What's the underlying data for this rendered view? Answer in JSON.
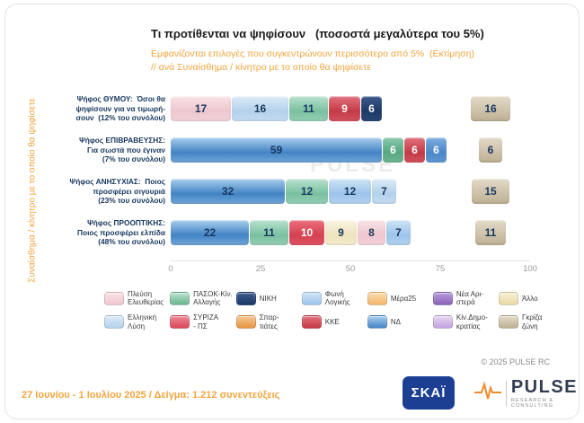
{
  "title": "Τι προτίθενται να ψηφίσουν   (ποσοστά μεγαλύτερα του 5%)",
  "subtitle_line1": "Εμφανίζονται επιλογές που συγκεντρώνουν περισσότερο από 5%  (Εκτίμηση)",
  "subtitle_line2": "// ανά Συναίσθημα / κίνητρο με το οποίο θα ψηφίσετε",
  "y_axis_label": "Συναίσθημα / κίνητρο με το οποίο θα ψηφίσετε",
  "watermark": "PULSE",
  "copyright": "© 2025 PULSE RC",
  "footer": "27 Ιουνίου - 1 Ιουλίου 2025  /  Δείγμα:  1.212 συνεντεύξεις",
  "logos": {
    "skai": "ΣΚΑΪ",
    "pulse": "PULSE",
    "pulse_sub": "RESEARCH & CONSULTING"
  },
  "accent_orange": "#f2a43e",
  "chart_data": {
    "type": "bar",
    "orientation": "horizontal",
    "stacked": true,
    "title": "Τι προτίθενται να ψηφίσουν (ποσοστά μεγαλύτερα του 5%)",
    "xlabel": "",
    "ylabel": "Συναίσθημα / κίνητρο με το οποίο θα ψηφίσετε",
    "xlim": [
      0,
      100
    ],
    "x_ticks": [
      0,
      25,
      50,
      75,
      100
    ],
    "grid": false,
    "legend_position": "bottom",
    "grey_zone_colors": {
      "c1": "#e3dac8",
      "c2": "#bdb093"
    },
    "rows": [
      {
        "label": "Ψήφος ΘΥΜΟΥ:  Όσοι θα\nψηφίσουν για να τιμωρή-\nσουν  (12% του συνόλου)",
        "segments": [
          {
            "party": "Πλεύση Ελευθερίας",
            "value": 17,
            "c1": "#f9e3e7",
            "c2": "#eec6ce",
            "tc": "#17375e"
          },
          {
            "party": "Ελληνική Λύση",
            "value": 16,
            "c1": "#ddebf7",
            "c2": "#b3d1ec",
            "tc": "#17375e"
          },
          {
            "party": "ΠΑΣΟΚ-Κίν. Αλλαγής",
            "value": 11,
            "c1": "#b9e2cf",
            "c2": "#79c0a0",
            "tc": "#17375e"
          },
          {
            "party": "ΚΚΕ",
            "value": 9,
            "c1": "#e2737e",
            "c2": "#c43a46",
            "tc": "#ffffff"
          },
          {
            "party": "ΝΙΚΗ",
            "value": 6,
            "c1": "#3c5c8e",
            "c2": "#1d3a66",
            "tc": "#ffffff"
          }
        ],
        "grey_zone": 16
      },
      {
        "label": "Ψήφος ΕΠΙΒΡΑΒΕΥΣΗΣ:\nΓια σωστά που έγιναν\n(7% του συνόλου)",
        "segments": [
          {
            "party": "ΝΔ",
            "value": 59,
            "c1": "#aacfee",
            "c2": "#4384c4",
            "tc": "#17375e"
          },
          {
            "party": "ΠΑΣΟΚ-Κίν. Αλλαγής",
            "value": 6,
            "c1": "#8cc9ab",
            "c2": "#56a781",
            "tc": "#ffffff"
          },
          {
            "party": "ΚΚΕ",
            "value": 6,
            "c1": "#e2737e",
            "c2": "#c43a46",
            "tc": "#ffffff"
          },
          {
            "party": "Φωνή Λογικής",
            "value": 6,
            "c1": "#7fb0e0",
            "c2": "#4a86c8",
            "tc": "#ffffff"
          }
        ],
        "grey_zone": 6
      },
      {
        "label": "Ψήφος ΑΝΗΣΥΧΙΑΣ:  Ποιος\nπροσφέρει σιγουριά\n(23% του συνόλου)",
        "segments": [
          {
            "party": "ΝΔ",
            "value": 32,
            "c1": "#aacfee",
            "c2": "#4384c4",
            "tc": "#17375e"
          },
          {
            "party": "ΠΑΣΟΚ-Κίν. Αλλαγής",
            "value": 12,
            "c1": "#b9e2cf",
            "c2": "#79c0a0",
            "tc": "#17375e"
          },
          {
            "party": "Φωνή Λογικής",
            "value": 12,
            "c1": "#cfe4f7",
            "c2": "#9cc4ea",
            "tc": "#17375e"
          },
          {
            "party": "Ελληνική Λύση",
            "value": 7,
            "c1": "#ddebf7",
            "c2": "#b3d1ec",
            "tc": "#17375e"
          }
        ],
        "grey_zone": 15
      },
      {
        "label": "Ψήφος ΠΡΟΟΠΤΙΚΗΣ:\nΠοιος προσφέρει ελπίδα\n(48% του συνόλου)",
        "segments": [
          {
            "party": "ΝΔ",
            "value": 22,
            "c1": "#aacfee",
            "c2": "#4384c4",
            "tc": "#17375e"
          },
          {
            "party": "ΠΑΣΟΚ-Κίν. Αλλαγής",
            "value": 11,
            "c1": "#b9e2cf",
            "c2": "#79c0a0",
            "tc": "#17375e"
          },
          {
            "party": "ΣΥΡΙΖΑ - ΠΣ",
            "value": 10,
            "c1": "#ec6f7e",
            "c2": "#d5404f",
            "tc": "#ffffff"
          },
          {
            "party": "Άλλο",
            "value": 9,
            "c1": "#faf5e3",
            "c2": "#eee3bd",
            "tc": "#17375e"
          },
          {
            "party": "Πλεύση Ελευθερίας",
            "value": 8,
            "c1": "#f9e3e7",
            "c2": "#eec6ce",
            "tc": "#17375e"
          },
          {
            "party": "Φωνή Λογικής",
            "value": 7,
            "c1": "#cfe4f7",
            "c2": "#9cc4ea",
            "tc": "#17375e"
          }
        ],
        "grey_zone": 11
      }
    ],
    "legend": [
      {
        "label": "Πλεύση\nΕλευθερίας",
        "c1": "#f9e3e7",
        "c2": "#eec6ce"
      },
      {
        "label": "ΠΑΣΟΚ-Κίν.\nΑλλαγής",
        "c1": "#b9e2cf",
        "c2": "#6ab68f"
      },
      {
        "label": "ΝΙΚΗ",
        "c1": "#3c5c8e",
        "c2": "#1d3a66"
      },
      {
        "label": "Φωνή\nΛογικής",
        "c1": "#cfe4f7",
        "c2": "#9cc4ea"
      },
      {
        "label": "Μέρα25",
        "c1": "#fbddb0",
        "c2": "#f3b56a"
      },
      {
        "label": "Νέα Αρι-\nστερά",
        "c1": "#b79ddc",
        "c2": "#8a63b8"
      },
      {
        "label": "Άλλο",
        "c1": "#f8f0d5",
        "c2": "#e9d9a5"
      },
      {
        "label": "Ελληνική\nΛύση",
        "c1": "#ddebf7",
        "c2": "#b3d1ec"
      },
      {
        "label": "ΣΥΡΙΖΑ\n- ΠΣ",
        "c1": "#ee8896",
        "c2": "#d9485c"
      },
      {
        "label": "Σπαρ-\nτιάτες",
        "c1": "#f6c693",
        "c2": "#e6953f"
      },
      {
        "label": "ΚΚΕ",
        "c1": "#e2737e",
        "c2": "#c43a46"
      },
      {
        "label": "ΝΔ",
        "c1": "#aacfee",
        "c2": "#4384c4"
      },
      {
        "label": "Κίν.Δημο-\nκρατίας",
        "c1": "#e6d6f2",
        "c2": "#c2a3de"
      },
      {
        "label": "Γκρίζα\nζώνη",
        "c1": "#e3dac8",
        "c2": "#bdb093"
      }
    ]
  }
}
